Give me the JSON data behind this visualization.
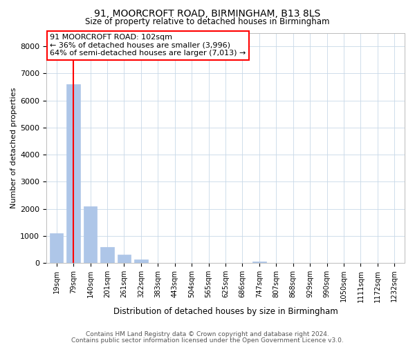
{
  "title1": "91, MOORCROFT ROAD, BIRMINGHAM, B13 8LS",
  "title2": "Size of property relative to detached houses in Birmingham",
  "xlabel": "Distribution of detached houses by size in Birmingham",
  "ylabel": "Number of detached properties",
  "categories": [
    "19sqm",
    "79sqm",
    "140sqm",
    "201sqm",
    "261sqm",
    "322sqm",
    "383sqm",
    "443sqm",
    "504sqm",
    "565sqm",
    "625sqm",
    "686sqm",
    "747sqm",
    "807sqm",
    "868sqm",
    "929sqm",
    "990sqm",
    "1050sqm",
    "1111sqm",
    "1172sqm",
    "1232sqm"
  ],
  "values": [
    1100,
    6600,
    2100,
    580,
    300,
    120,
    0,
    0,
    0,
    0,
    0,
    0,
    50,
    0,
    0,
    0,
    0,
    0,
    0,
    0,
    0
  ],
  "bar_color": "#aec6e8",
  "bar_edge_color": "#aec6e8",
  "vline_x": 1,
  "vline_color": "red",
  "annotation_text": "91 MOORCROFT ROAD: 102sqm\n← 36% of detached houses are smaller (3,996)\n64% of semi-detached houses are larger (7,013) →",
  "annotation_box_color": "white",
  "annotation_box_edge": "red",
  "ylim": [
    0,
    8500
  ],
  "yticks": [
    0,
    1000,
    2000,
    3000,
    4000,
    5000,
    6000,
    7000,
    8000
  ],
  "footer1": "Contains HM Land Registry data © Crown copyright and database right 2024.",
  "footer2": "Contains public sector information licensed under the Open Government Licence v3.0.",
  "background_color": "#ffffff",
  "grid_color": "#c8d8e8"
}
